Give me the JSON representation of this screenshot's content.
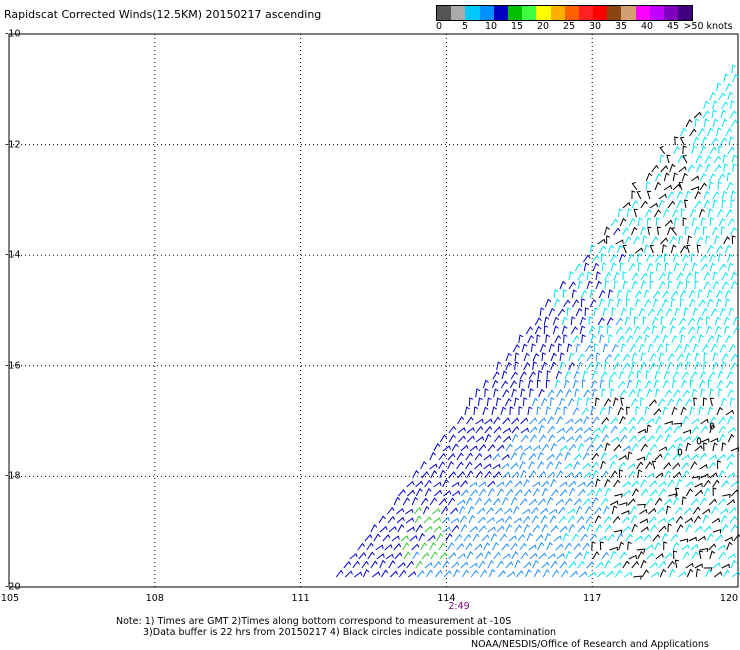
{
  "title": "Rapidscat Corrected Winds(12.5KM) 20150217 ascending",
  "color_scale": {
    "colors": [
      "#555555",
      "#aaaaaa",
      "#00c8ff",
      "#0090ff",
      "#0000c0",
      "#00c000",
      "#40ff40",
      "#ffff00",
      "#ffb000",
      "#ff6000",
      "#ff2020",
      "#ff0000",
      "#8b4513",
      "#d2a070",
      "#ff00ff",
      "#c000ff",
      "#8000c0",
      "#400080"
    ],
    "labels": [
      "0",
      "5",
      "10",
      "15",
      "20",
      "25",
      "30",
      "35",
      "40",
      "45",
      ">50 knots"
    ]
  },
  "map": {
    "lon_range": [
      105,
      120
    ],
    "lat_range": [
      -20,
      -10
    ],
    "lon_labels": [
      "105",
      "108",
      "111",
      "114",
      "117",
      "120"
    ],
    "lat_labels": [
      "-10",
      "-12",
      "-14",
      "-16",
      "-18",
      "-20"
    ],
    "time_label": "2:49",
    "wind_colors": {
      "low": "#000000",
      "light": "#00e5ee",
      "mid": "#1e90ff",
      "strong": "#0000cd",
      "gust": "#32cd32"
    }
  },
  "notes": {
    "line1": "Note: 1) Times are GMT 2)Times along bottom correspond to measurement at -10S",
    "line2": "3)Data buffer is 22 hrs from 20150217 4) Black circles indicate possible contamination",
    "line3": "NOAA/NESDIS/Office of Research and Applications"
  }
}
